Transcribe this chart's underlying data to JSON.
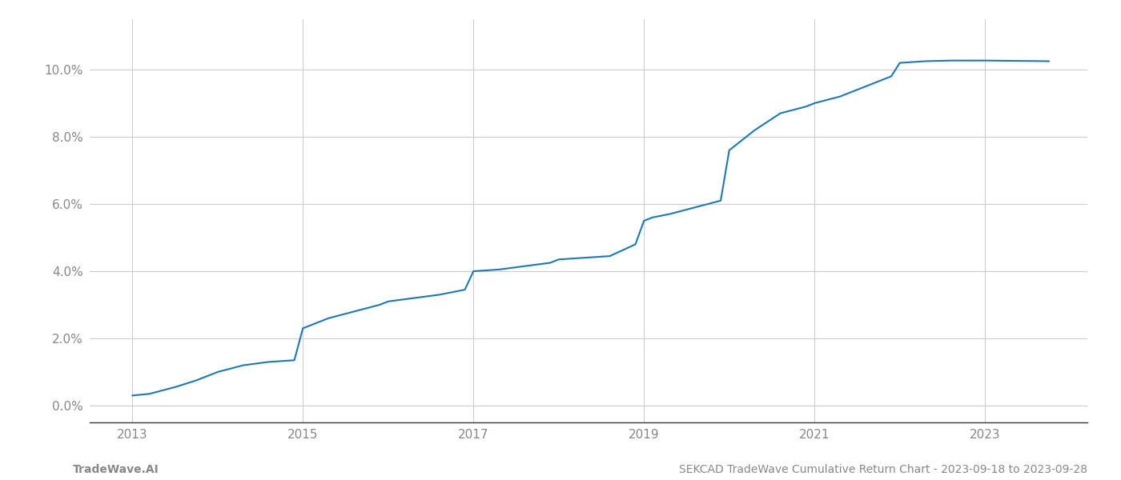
{
  "x_years": [
    2013.0,
    2013.2,
    2013.5,
    2013.75,
    2014.0,
    2014.3,
    2014.6,
    2014.9,
    2015.0,
    2015.3,
    2015.6,
    2015.9,
    2016.0,
    2016.3,
    2016.6,
    2016.9,
    2017.0,
    2017.3,
    2017.6,
    2017.9,
    2018.0,
    2018.3,
    2018.6,
    2018.9,
    2019.0,
    2019.1,
    2019.3,
    2019.6,
    2019.9,
    2020.0,
    2020.3,
    2020.6,
    2020.9,
    2021.0,
    2021.3,
    2021.6,
    2021.9,
    2022.0,
    2022.3,
    2022.6,
    2023.0,
    2023.75
  ],
  "y_values": [
    0.003,
    0.0035,
    0.0055,
    0.0075,
    0.01,
    0.012,
    0.013,
    0.0135,
    0.023,
    0.026,
    0.028,
    0.03,
    0.031,
    0.032,
    0.033,
    0.0345,
    0.04,
    0.0405,
    0.0415,
    0.0425,
    0.0435,
    0.044,
    0.0445,
    0.048,
    0.055,
    0.056,
    0.057,
    0.059,
    0.061,
    0.076,
    0.082,
    0.087,
    0.089,
    0.09,
    0.092,
    0.095,
    0.098,
    0.102,
    0.1025,
    0.1027,
    0.1027,
    0.1025
  ],
  "line_color": "#1f77b4",
  "line_width": 1.5,
  "xlim": [
    2012.5,
    2024.2
  ],
  "ylim": [
    -0.005,
    0.115
  ],
  "yticks": [
    0.0,
    0.02,
    0.04,
    0.06,
    0.08,
    0.1
  ],
  "ytick_labels": [
    "0.0%",
    "2.0%",
    "4.0%",
    "6.0%",
    "8.0%",
    "10.0%"
  ],
  "xticks": [
    2013,
    2015,
    2017,
    2019,
    2021,
    2023
  ],
  "grid_color": "#cccccc",
  "background_color": "#ffffff",
  "footer_left": "TradeWave.AI",
  "footer_right": "SEKCAD TradeWave Cumulative Return Chart - 2023-09-18 to 2023-09-28",
  "footer_color": "#888888",
  "footer_fontsize": 10,
  "tick_color": "#888888",
  "tick_fontsize": 11,
  "spine_color": "#333333"
}
